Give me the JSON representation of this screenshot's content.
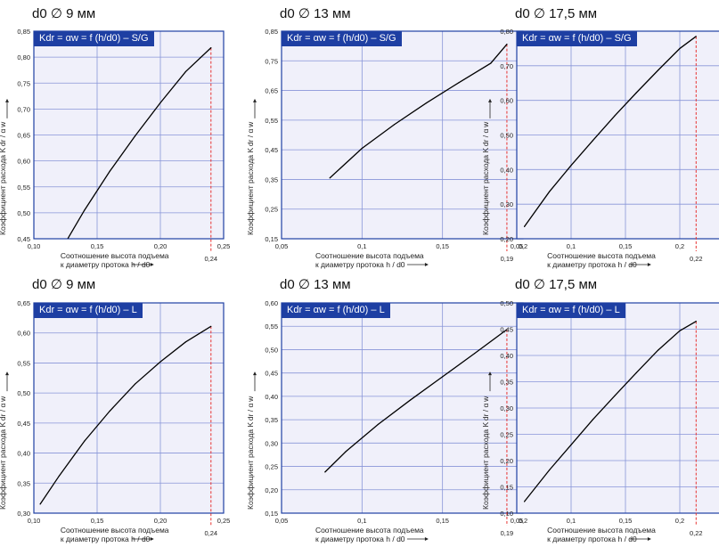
{
  "colors": {
    "header_blue": "#1e3fa3",
    "plot_bg": "#f0f0fa",
    "grid": "#8895d8",
    "curve": "#000000",
    "ref_line": "#e8312f"
  },
  "ylabel_text": "Коэффициент расхода K dr / α w",
  "xlabel_lines": [
    "Соотношение высота подъема",
    "к диаметру протока h / d0"
  ],
  "chart_data": [
    {
      "type": "line",
      "subtitle": "d0 ∅ 9 мм",
      "title": "Kdr = αw = f (h/d0) – S/G",
      "xlim": [
        0.1,
        0.25
      ],
      "ylim": [
        0.45,
        0.85
      ],
      "xticks": [
        0.1,
        0.15,
        0.2,
        0.25
      ],
      "xtick_labels": [
        "0,10",
        "0,15",
        "0,20",
        "0,25"
      ],
      "yticks": [
        0.45,
        0.5,
        0.55,
        0.6,
        0.65,
        0.7,
        0.75,
        0.8,
        0.85
      ],
      "ytick_labels": [
        "0,45",
        "0,50",
        "0,55",
        "0,60",
        "0,65",
        "0,70",
        "0,75",
        "0,80",
        "0,85"
      ],
      "grid": true,
      "x": [
        0.127,
        0.14,
        0.16,
        0.18,
        0.2,
        0.22,
        0.24
      ],
      "y": [
        0.451,
        0.505,
        0.58,
        0.648,
        0.712,
        0.772,
        0.818
      ],
      "ref_x": 0.24,
      "ref_label": "0,24"
    },
    {
      "type": "line",
      "subtitle": "d0 ∅ 13 мм",
      "title": "Kdr = αw = f (h/d0) – S/G",
      "xlim": [
        0.05,
        0.2
      ],
      "ylim": [
        0.15,
        0.85
      ],
      "xticks": [
        0.05,
        0.1,
        0.15,
        0.2
      ],
      "xtick_labels": [
        "0,05",
        "0,1",
        "0,15",
        "0,2"
      ],
      "yticks": [
        0.15,
        0.25,
        0.35,
        0.45,
        0.55,
        0.65,
        0.75,
        0.85
      ],
      "ytick_labels": [
        "0,15",
        "0,25",
        "0,35",
        "0,45",
        "0,55",
        "0,65",
        "0,75",
        "0,85"
      ],
      "grid": true,
      "x": [
        0.08,
        0.1,
        0.12,
        0.14,
        0.16,
        0.18,
        0.19
      ],
      "y": [
        0.355,
        0.455,
        0.535,
        0.608,
        0.676,
        0.742,
        0.806
      ],
      "ref_x": 0.19,
      "ref_label": "0,19"
    },
    {
      "type": "line",
      "subtitle": "d0 ∅ 17,5 мм",
      "title": "Kdr = αw = f (h/d0) – S/G",
      "xlim": [
        0.05,
        0.25
      ],
      "ylim": [
        0.2,
        0.8
      ],
      "xticks": [
        0.05,
        0.1,
        0.15,
        0.2,
        0.25
      ],
      "xtick_labels": [
        "0,05",
        "0,1",
        "0,15",
        "0,2",
        "0,25"
      ],
      "yticks": [
        0.2,
        0.3,
        0.4,
        0.5,
        0.6,
        0.7,
        0.8
      ],
      "ytick_labels": [
        "0,20",
        "0,30",
        "0,40",
        "0,50",
        "0,60",
        "0,70",
        "0,80"
      ],
      "grid": true,
      "x": [
        0.057,
        0.08,
        0.1,
        0.12,
        0.14,
        0.16,
        0.18,
        0.2,
        0.215
      ],
      "y": [
        0.235,
        0.336,
        0.412,
        0.484,
        0.555,
        0.622,
        0.687,
        0.75,
        0.785
      ],
      "ref_x": 0.215,
      "ref_label": "0,22"
    },
    {
      "type": "line",
      "subtitle": "d0 ∅ 9 мм",
      "title": "Kdr = αw = f (h/d0) – L",
      "xlim": [
        0.1,
        0.25
      ],
      "ylim": [
        0.3,
        0.65
      ],
      "xticks": [
        0.1,
        0.15,
        0.2,
        0.25
      ],
      "xtick_labels": [
        "0,10",
        "0,15",
        "0,20",
        "0,25"
      ],
      "yticks": [
        0.3,
        0.35,
        0.4,
        0.45,
        0.5,
        0.55,
        0.6,
        0.65
      ],
      "ytick_labels": [
        "0,30",
        "0,35",
        "0,40",
        "0,45",
        "0,50",
        "0,55",
        "0,60",
        "0,65"
      ],
      "grid": true,
      "x": [
        0.105,
        0.12,
        0.14,
        0.16,
        0.18,
        0.2,
        0.22,
        0.24
      ],
      "y": [
        0.315,
        0.362,
        0.42,
        0.47,
        0.515,
        0.552,
        0.585,
        0.611
      ],
      "ref_x": 0.24,
      "ref_label": "0,24"
    },
    {
      "type": "line",
      "subtitle": "d0 ∅ 13 мм",
      "title": "Kdr = αw = f (h/d0) – L",
      "xlim": [
        0.05,
        0.2
      ],
      "ylim": [
        0.15,
        0.6
      ],
      "xticks": [
        0.05,
        0.1,
        0.15,
        0.2
      ],
      "xtick_labels": [
        "0,05",
        "0,1",
        "0,15",
        "0,2"
      ],
      "yticks": [
        0.15,
        0.2,
        0.25,
        0.3,
        0.35,
        0.4,
        0.45,
        0.5,
        0.55,
        0.6
      ],
      "ytick_labels": [
        "0,15",
        "0,20",
        "0,25",
        "0,30",
        "0,35",
        "0,40",
        "0,45",
        "0,50",
        "0,55",
        "0,60"
      ],
      "grid": true,
      "x": [
        0.077,
        0.09,
        0.11,
        0.13,
        0.15,
        0.17,
        0.19
      ],
      "y": [
        0.238,
        0.282,
        0.34,
        0.392,
        0.442,
        0.492,
        0.543
      ],
      "ref_x": 0.19,
      "ref_label": "0,19"
    },
    {
      "type": "line",
      "subtitle": "d0 ∅ 17,5 мм",
      "title": "Kdr = αw = f (h/d0) – L",
      "xlim": [
        0.05,
        0.25
      ],
      "ylim": [
        0.1,
        0.5
      ],
      "xticks": [
        0.05,
        0.1,
        0.15,
        0.2,
        0.25
      ],
      "xtick_labels": [
        "0,05",
        "0,1",
        "0,15",
        "0,2",
        "0,25"
      ],
      "yticks": [
        0.1,
        0.15,
        0.2,
        0.25,
        0.3,
        0.35,
        0.4,
        0.45,
        0.5
      ],
      "ytick_labels": [
        "0,10",
        "0,15",
        "0,20",
        "0,25",
        "0,30",
        "0,35",
        "0,40",
        "0,45",
        "0,50"
      ],
      "grid": true,
      "x": [
        0.057,
        0.08,
        0.1,
        0.12,
        0.14,
        0.16,
        0.18,
        0.2,
        0.215
      ],
      "y": [
        0.122,
        0.182,
        0.23,
        0.278,
        0.323,
        0.367,
        0.41,
        0.447,
        0.465
      ],
      "ref_x": 0.215,
      "ref_label": "0,22"
    }
  ]
}
